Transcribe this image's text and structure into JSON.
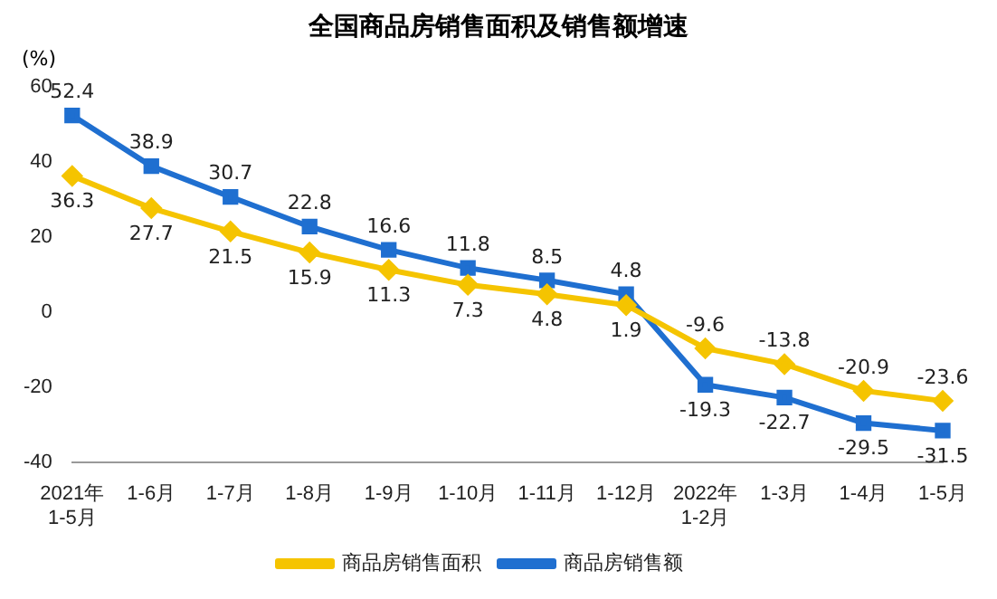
{
  "chart_data": {
    "type": "line",
    "title": "全国商品房销售面积及销售额增速",
    "ylabel": "(%)",
    "categories": [
      "2021年\n1-5月",
      "1-6月",
      "1-7月",
      "1-8月",
      "1-9月",
      "1-10月",
      "1-11月",
      "1-12月",
      "2022年\n1-2月",
      "1-3月",
      "1-4月",
      "1-5月"
    ],
    "series": [
      {
        "name": "商品房销售面积",
        "color": "#f5c400",
        "marker": "diamond",
        "values": [
          36.3,
          27.7,
          21.5,
          15.9,
          11.3,
          7.3,
          4.8,
          1.9,
          -9.6,
          -13.8,
          -20.9,
          -23.6
        ]
      },
      {
        "name": "商品房销售额",
        "color": "#1f6fd0",
        "marker": "square",
        "values": [
          52.4,
          38.9,
          30.7,
          22.8,
          16.6,
          11.8,
          8.5,
          4.8,
          -19.3,
          -22.7,
          -29.5,
          -31.5
        ]
      }
    ],
    "ylim": [
      -40,
      60
    ],
    "yticks": [
      -40,
      -20,
      0,
      20,
      40,
      60
    ],
    "grid": false,
    "legend": "bottom",
    "data_labels": true,
    "line_style": "solid"
  }
}
